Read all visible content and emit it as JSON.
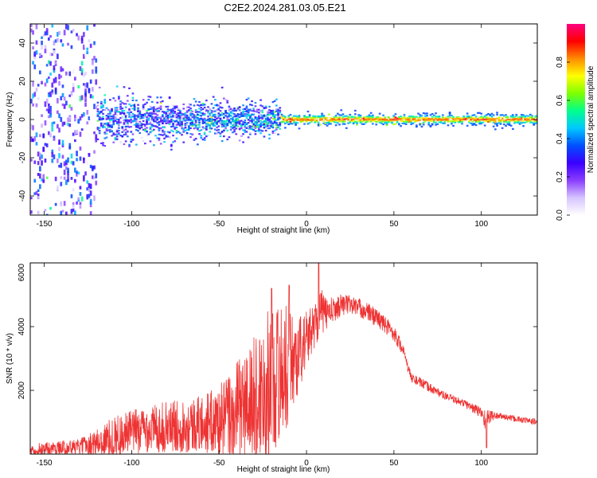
{
  "figure_title": "C2E2.2024.281.03.05.E21",
  "chart_data": [
    {
      "type": "heatmap",
      "xlabel": "Height of straight line (km)",
      "ylabel": "Frequency (Hz)",
      "xlim": [
        -158,
        132
      ],
      "ylim": [
        -50,
        50
      ],
      "xticks": [
        -150,
        -100,
        -50,
        0,
        50,
        100
      ],
      "yticks": [
        40,
        20,
        0,
        -20,
        -40
      ],
      "colorbar": {
        "label": "Normalized spectral amplitude",
        "range": [
          0,
          1
        ],
        "ticks": [
          0.0,
          0.2,
          0.4,
          0.6,
          0.8
        ],
        "colormap": [
          "#ffffff",
          "#d6c4ff",
          "#8a3dff",
          "#3a00ff",
          "#0050ff",
          "#00c8ff",
          "#00ff8c",
          "#7dff00",
          "#ffff00",
          "#ff8c00",
          "#ff0000",
          "#ff0080"
        ]
      },
      "description_bands": [
        {
          "x": [
            -158,
            -120
          ],
          "freq_spread": 50,
          "amplitude": 0.3
        },
        {
          "x": [
            -120,
            -15
          ],
          "freq_spread": 12,
          "amplitude": 0.35
        },
        {
          "x": [
            -15,
            132
          ],
          "freq_spread": 3,
          "amplitude": 0.8
        }
      ]
    },
    {
      "type": "line",
      "xlabel": "Height of straight line (km)",
      "ylabel": "SNR (10 * v/v)",
      "xlim": [
        -158,
        132
      ],
      "ylim": [
        0,
        6000
      ],
      "xticks": [
        -150,
        -100,
        -50,
        0,
        50,
        100
      ],
      "yticks": [
        2000,
        4000,
        6000
      ],
      "color": "#ee3333",
      "envelope": {
        "x": [
          -158,
          -130,
          -120,
          -110,
          -100,
          -90,
          -80,
          -70,
          -60,
          -50,
          -40,
          -30,
          -25,
          -20,
          -15,
          -10,
          -5,
          0,
          5,
          8,
          10,
          15,
          20,
          25,
          30,
          40,
          50,
          55,
          58,
          60,
          70,
          80,
          90,
          100,
          103,
          105,
          110,
          120,
          132
        ],
        "mean": [
          150,
          220,
          350,
          550,
          700,
          800,
          850,
          900,
          950,
          1050,
          1300,
          1700,
          2000,
          2300,
          2600,
          2800,
          3100,
          3600,
          4100,
          4500,
          4400,
          4500,
          4700,
          4700,
          4600,
          4300,
          3800,
          3300,
          2700,
          2400,
          2100,
          1800,
          1600,
          1300,
          1000,
          1200,
          1200,
          1100,
          1000
        ],
        "spread": [
          200,
          250,
          450,
          650,
          700,
          750,
          800,
          850,
          900,
          1100,
          1600,
          2000,
          2200,
          2400,
          2200,
          1800,
          1300,
          900,
          700,
          800,
          600,
          400,
          350,
          300,
          300,
          300,
          250,
          200,
          150,
          150,
          150,
          120,
          120,
          200,
          400,
          200,
          100,
          100,
          100
        ],
        "peaks": [
          {
            "x": 7,
            "y": 6000
          },
          {
            "x": -20,
            "y": 5200
          },
          {
            "x": -10,
            "y": 5300
          },
          {
            "x": 103,
            "y": 200
          }
        ]
      }
    }
  ]
}
